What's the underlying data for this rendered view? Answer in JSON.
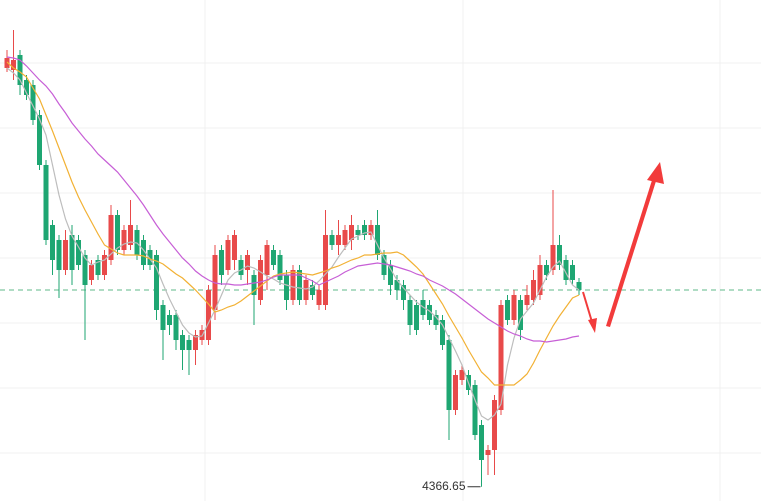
{
  "chart_data": {
    "type": "candlestick",
    "up_color": "#e84a4a",
    "down_color": "#1ea672",
    "ylim": [
      4363.8,
      4464
    ],
    "open": [
      4450.4,
      4450,
      4453,
      4448,
      4447,
      4441,
      4431,
      4419,
      4416,
      4410,
      4417,
      4416,
      4413,
      4408,
      4412,
      4409,
      4412,
      4421,
      4414,
      4415,
      4418,
      4416,
      4414,
      4413,
      4403,
      4401,
      4401,
      4397,
      4396,
      4394,
      4396,
      4396,
      4402,
      4414,
      4410,
      4412,
      4412,
      4410,
      4409,
      4404,
      4409,
      4414,
      4413,
      4409,
      4404,
      4410,
      4404,
      4407,
      4403,
      4403,
      4417,
      4415,
      4415,
      4416,
      4418,
      4419,
      4417,
      4419,
      4413,
      4411,
      4408,
      4407,
      4404,
      4403,
      4404,
      4403,
      4401,
      4400,
      4396,
      4382,
      4388,
      4389,
      4387,
      4379,
      4373,
      4374,
      4382,
      4404,
      4400,
      4404,
      4403,
      4404,
      4405,
      4411,
      4410,
      4415,
      4412,
      4411,
      4407.6
    ],
    "high": [
      4454,
      4458,
      4454,
      4449,
      4448,
      4442,
      4432,
      4420,
      4417,
      4418,
      4419,
      4417,
      4414,
      4412,
      4413,
      4414,
      4423,
      4422,
      4419,
      4424,
      4419,
      4417,
      4415,
      4414,
      4404,
      4402,
      4402,
      4398,
      4397,
      4398,
      4399,
      4407,
      4415,
      4415,
      4417,
      4418,
      4413,
      4414,
      4410,
      4413,
      4416,
      4415,
      4414,
      4410,
      4411,
      4411,
      4409,
      4408,
      4407,
      4422,
      4418,
      4420,
      4419,
      4421,
      4419,
      4420,
      4420,
      4422,
      4414,
      4412,
      4409,
      4408,
      4405,
      4404,
      4406,
      4404,
      4402,
      4401,
      4397,
      4390,
      4391,
      4390,
      4388,
      4380,
      4375,
      4385,
      4404,
      4405,
      4406,
      4405,
      4407,
      4410,
      4413,
      4412,
      4426,
      4417,
      4413,
      4412,
      4408.4
    ],
    "low": [
      4449.6,
      4448,
      4445,
      4444,
      4439,
      4430,
      4415,
      4409,
      4404.4,
      4409,
      4407,
      4410,
      4396,
      4407,
      4408,
      4408,
      4411,
      4413,
      4413,
      4414,
      4412,
      4410,
      4410,
      4400,
      4392,
      4397,
      4394,
      4390,
      4389,
      4391,
      4395,
      4395,
      4400,
      4407,
      4409,
      4410,
      4408,
      4407,
      4399,
      4403,
      4406,
      4410,
      4407,
      4402,
      4403,
      4403,
      4403,
      4404,
      4402,
      4402,
      4414,
      4413,
      4414,
      4414,
      4416,
      4416,
      4416,
      4412,
      4408,
      4405,
      4404,
      4402,
      4397,
      4397,
      4400,
      4399,
      4398,
      4394,
      4376,
      4381,
      4387,
      4385,
      4376,
      4366.65,
      4369,
      4369,
      4381,
      4399,
      4399,
      4396,
      4402,
      4403,
      4404,
      4408,
      4409,
      4410,
      4407,
      4407,
      4405
    ],
    "close": [
      4452.4,
      4452,
      4447,
      4445,
      4440,
      4431,
      4416,
      4412,
      4410,
      4416,
      4410,
      4411,
      4407,
      4411,
      4409,
      4413,
      4421,
      4414,
      4418,
      4419,
      4413,
      4411,
      4411,
      4402,
      4398,
      4399,
      4396,
      4394,
      4394,
      4397,
      4398,
      4406,
      4413,
      4409,
      4416,
      4417,
      4409,
      4413,
      4405,
      4412,
      4415,
      4411,
      4408,
      4404,
      4410,
      4404,
      4408,
      4405,
      4406,
      4417,
      4415,
      4417,
      4418,
      4419,
      4417,
      4417,
      4419,
      4413,
      4409,
      4407,
      4406,
      4404,
      4399,
      4398,
      4401,
      4400,
      4399,
      4395,
      4382,
      4389,
      4390,
      4386,
      4377,
      4372,
      4374,
      4384,
      4403,
      4400,
      4405,
      4398,
      4405,
      4408,
      4411,
      4409,
      4415,
      4411,
      4408,
      4408,
      4406
    ],
    "lines": [
      {
        "color": "#bdbdbd",
        "values": [
          4450.4,
          4449.4,
          4448,
          4445.4,
          4442.8,
          4440.2,
          4437,
          4431,
          4425,
          4420.2,
          4416.8,
          4414.6,
          4412.4,
          4411,
          4411.6,
          4412,
          4413.2,
          4414.4,
          4415.2,
          4415.6,
          4415.4,
          4414,
          4412.2,
          4410.4,
          4407.2,
          4404.2,
          4401.6,
          4399,
          4397.4,
          4396.6,
          4396.8,
          4399.4,
          4402,
          4405,
          4408,
          4409.4,
          4410,
          4410.8,
          4410.4,
          4409.6,
          4408.8,
          4408.2,
          4407.4,
          4407,
          4406.6,
          4406.4,
          4406.2,
          4406.6,
          4407.8,
          4409.2,
          4410.6,
          4412.6,
          4414.4,
          4416.2,
          4416.8,
          4417.4,
          4417.6,
          4415,
          4412.4,
          4410.2,
          4408,
          4406.4,
          4405,
          4403.6,
          4402.6,
          4401.8,
          4400.6,
          4399,
          4396.4,
          4393.8,
          4391,
          4387.4,
          4384,
          4380.8,
          4380,
          4381,
          4383.2,
          4391,
          4396.4,
          4400.2,
          4401.8,
          4403.4,
          4406,
          4408.6,
          4410.6,
          4411.8,
          4409.4,
          4407,
          4406
        ]
      },
      {
        "color": "#f2b134",
        "values": [
          4451.6,
          4450.4,
          4449.6,
          4448.6,
          4446.4,
          4444.2,
          4441,
          4437.8,
          4434.4,
          4431,
          4427.6,
          4424.6,
          4422,
          4419.6,
          4417.2,
          4415,
          4414.2,
          4413.4,
          4413,
          4413,
          4413,
          4412.8,
          4412.2,
          4411.8,
          4411.2,
          4410.2,
          4409.2,
          4408.4,
          4407.2,
          4406,
          4404.6,
          4403.2,
          4401.6,
          4402,
          4402.6,
          4403,
          4403.8,
          4404.8,
          4405.8,
          4406.8,
          4407.8,
          4408.8,
          4409.2,
          4409.4,
          4409.6,
          4409.4,
          4409.2,
          4409,
          4409.4,
          4409.8,
          4410.4,
          4410.8,
          4411.4,
          4412,
          4412.4,
          4413,
          4413,
          4413.2,
          4413.4,
          4413.4,
          4413.6,
          4413,
          4411.8,
          4410.6,
          4409.2,
          4407.2,
          4405.2,
          4403.2,
          4400.8,
          4398.6,
          4396.4,
          4394,
          4391.8,
          4389.6,
          4388.4,
          4387,
          4387,
          4387,
          4387,
          4388,
          4389.2,
          4391.4,
          4394,
          4396.4,
          4398.8,
          4400.8,
          4402.6,
          4404.4,
          4405
        ]
      },
      {
        "color": "#c75fd6",
        "values": [
          4452.6,
          4452.4,
          4452,
          4450.8,
          4449.4,
          4448,
          4446.8,
          4445.2,
          4443.2,
          4441.4,
          4439.4,
          4437.8,
          4436.2,
          4434.8,
          4433.2,
          4432,
          4430.8,
          4429.6,
          4428,
          4426.4,
          4424.8,
          4423,
          4421,
          4419,
          4417.2,
          4415.6,
          4414,
          4412.4,
          4411.2,
          4409.8,
          4408.8,
          4408,
          4407.4,
          4407.2,
          4407.2,
          4407,
          4407,
          4407.2,
          4407.4,
          4407.6,
          4408,
          4408.6,
          4409,
          4409,
          4409,
          4409,
          4408.4,
          4407.8,
          4407,
          4407.6,
          4408.2,
          4408.8,
          4409.6,
          4410.2,
          4410.8,
          4411,
          4411.2,
          4411.4,
          4411.2,
          4411,
          4410.6,
          4410.2,
          4409.8,
          4409.2,
          4408.8,
          4408,
          4407.4,
          4406.8,
          4406,
          4405.2,
          4404.2,
          4403.2,
          4402.2,
          4401.2,
          4400.2,
          4399.4,
          4398.6,
          4397.8,
          4397.2,
          4396.8,
          4396.2,
          4395.8,
          4395.8,
          4395.6,
          4395.8,
          4396,
          4396.2,
          4396.6,
          4396.8
        ]
      }
    ],
    "last_price": 4406,
    "last_price_color": "#5fb88a",
    "low_marker": 4366.65
  }
}
